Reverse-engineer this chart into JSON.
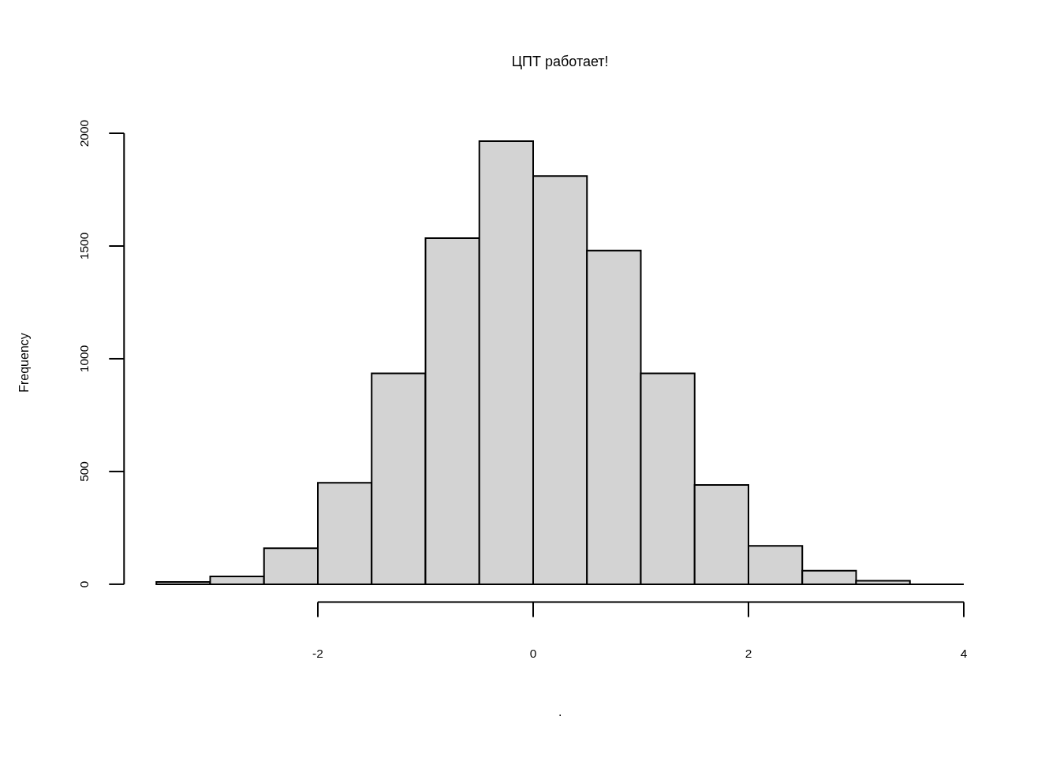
{
  "chart_data": {
    "type": "histogram",
    "title": "ЦПТ работает!",
    "xlabel": ".",
    "ylabel": "Frequency",
    "bins": [
      -3.5,
      -3,
      -2.5,
      -2,
      -1.5,
      -1,
      -0.5,
      0,
      0.5,
      1,
      1.5,
      2,
      2.5,
      3,
      3.5,
      4
    ],
    "values": [
      10,
      35,
      160,
      450,
      935,
      1535,
      1965,
      1810,
      1480,
      935,
      440,
      170,
      60,
      15,
      0
    ],
    "color": "#d3d3d3",
    "xlim": [
      -3.8,
      4
    ],
    "ylim": [
      -79,
      2000
    ],
    "xticks": [
      -2,
      0,
      2,
      4
    ],
    "yticks": [
      0,
      500,
      1000,
      1500,
      2000
    ]
  }
}
